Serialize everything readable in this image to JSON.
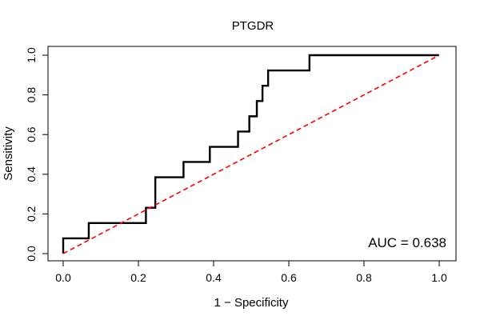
{
  "chart_data": {
    "type": "line",
    "title": "PTGDR",
    "xlabel": "1 − Specificity",
    "ylabel": "Sensitivity",
    "xlim": [
      0,
      1
    ],
    "ylim": [
      0,
      1
    ],
    "xticks": [
      "0.0",
      "0.2",
      "0.4",
      "0.6",
      "0.8",
      "1.0"
    ],
    "yticks": [
      "0.0",
      "0.2",
      "0.4",
      "0.6",
      "0.8",
      "1.0"
    ],
    "grid": false,
    "annotation": "AUC = 0.638",
    "series": [
      {
        "color": "#000000",
        "style": "solid",
        "points": [
          [
            0.0,
            0.0
          ],
          [
            0.0,
            0.077
          ],
          [
            0.068,
            0.077
          ],
          [
            0.068,
            0.154
          ],
          [
            0.22,
            0.154
          ],
          [
            0.22,
            0.231
          ],
          [
            0.245,
            0.231
          ],
          [
            0.245,
            0.385
          ],
          [
            0.32,
            0.385
          ],
          [
            0.32,
            0.462
          ],
          [
            0.39,
            0.462
          ],
          [
            0.39,
            0.538
          ],
          [
            0.465,
            0.538
          ],
          [
            0.465,
            0.615
          ],
          [
            0.495,
            0.615
          ],
          [
            0.495,
            0.692
          ],
          [
            0.515,
            0.692
          ],
          [
            0.515,
            0.769
          ],
          [
            0.53,
            0.769
          ],
          [
            0.53,
            0.846
          ],
          [
            0.545,
            0.846
          ],
          [
            0.545,
            0.923
          ],
          [
            0.655,
            0.923
          ],
          [
            0.655,
            1.0
          ],
          [
            1.0,
            1.0
          ]
        ]
      },
      {
        "color": "#ff0000",
        "style": "dashed",
        "points": [
          [
            0,
            0
          ],
          [
            1,
            1
          ]
        ]
      }
    ]
  }
}
